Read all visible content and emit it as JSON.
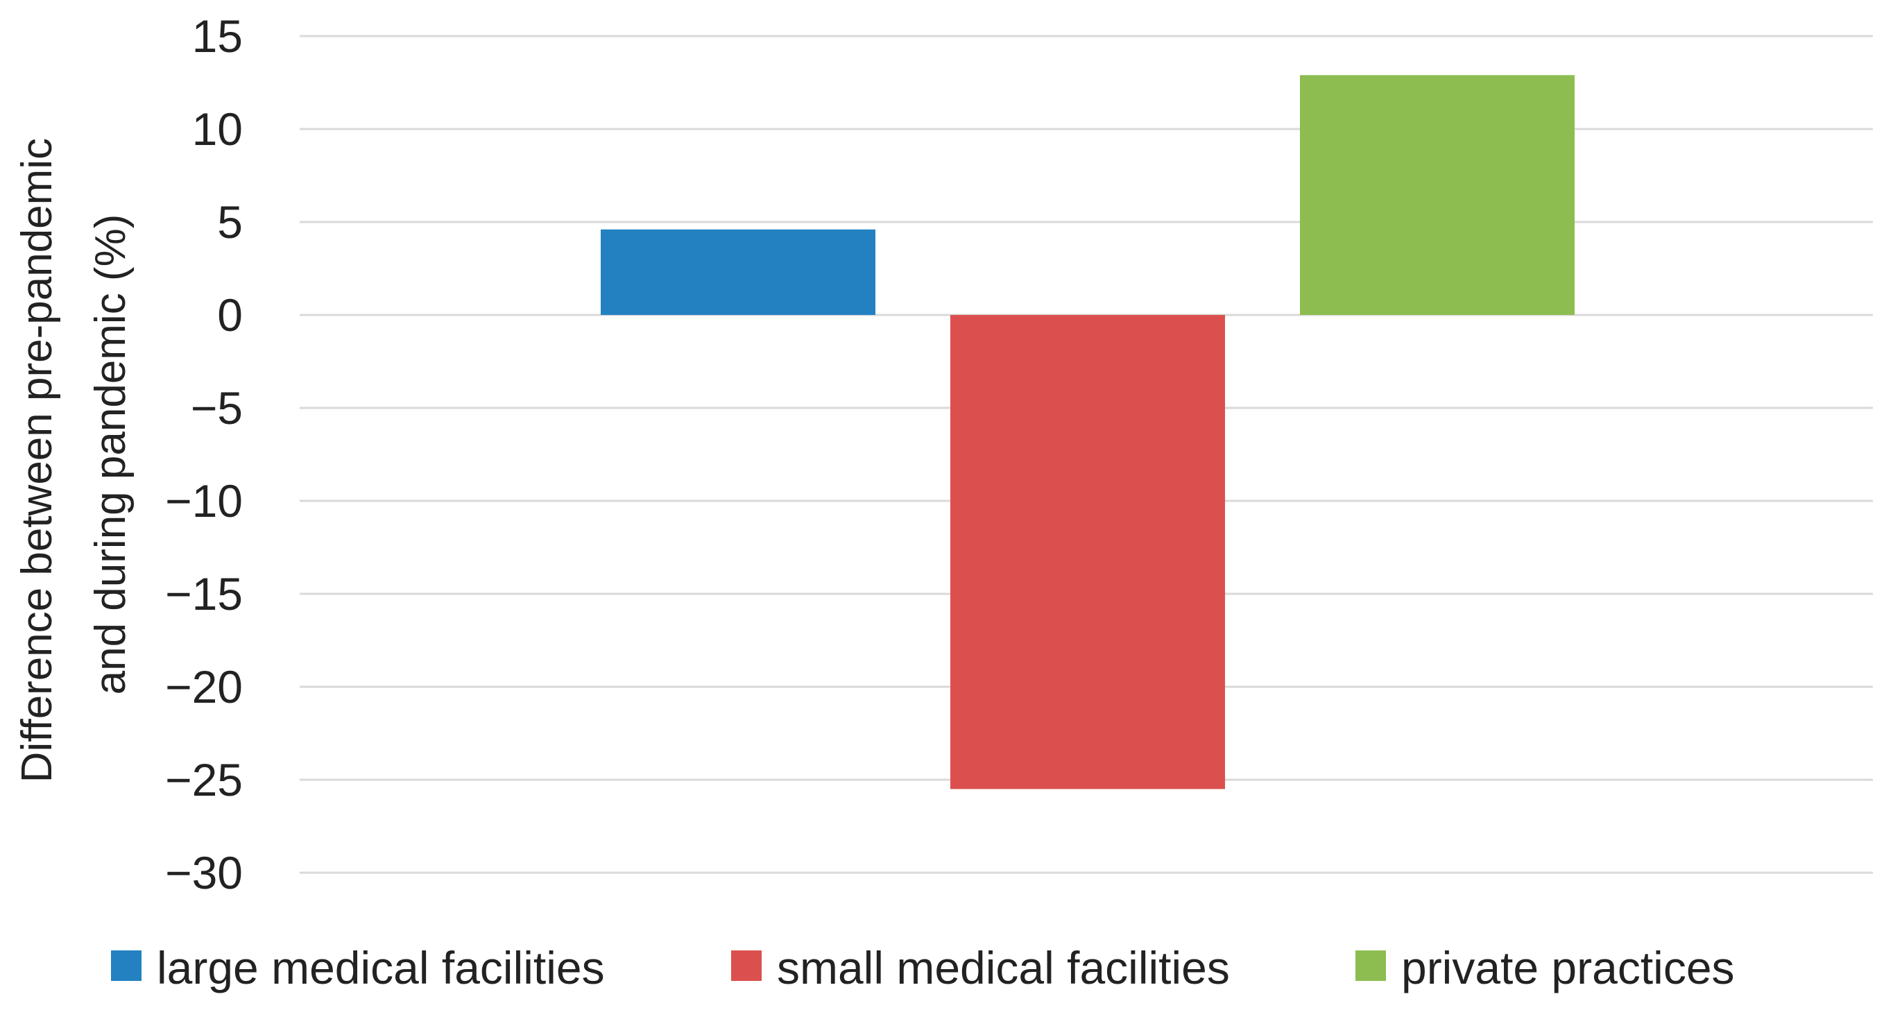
{
  "chart_data": {
    "type": "bar",
    "title": "",
    "xlabel": "",
    "ylabel": "Difference between pre-pandemic and during pandemic (%)",
    "ylabel_lines": [
      "Difference between pre-pandemic",
      "and during pandemic (%)"
    ],
    "ylim": [
      -30,
      15
    ],
    "yticks": [
      15,
      10,
      5,
      0,
      -5,
      -10,
      -15,
      -20,
      -25,
      -30
    ],
    "ytick_labels": [
      "15",
      "10",
      "5",
      "0",
      "−5",
      "−10",
      "−15",
      "−20",
      "−25",
      "−30"
    ],
    "grid": true,
    "legend_position": "bottom",
    "series": [
      {
        "name": "large medical facilities",
        "value": 4.6,
        "color": "#2381c2"
      },
      {
        "name": "small medical facilities",
        "value": -25.5,
        "color": "#db504e"
      },
      {
        "name": "private practices",
        "value": 12.9,
        "color": "#8dbd51"
      }
    ]
  }
}
